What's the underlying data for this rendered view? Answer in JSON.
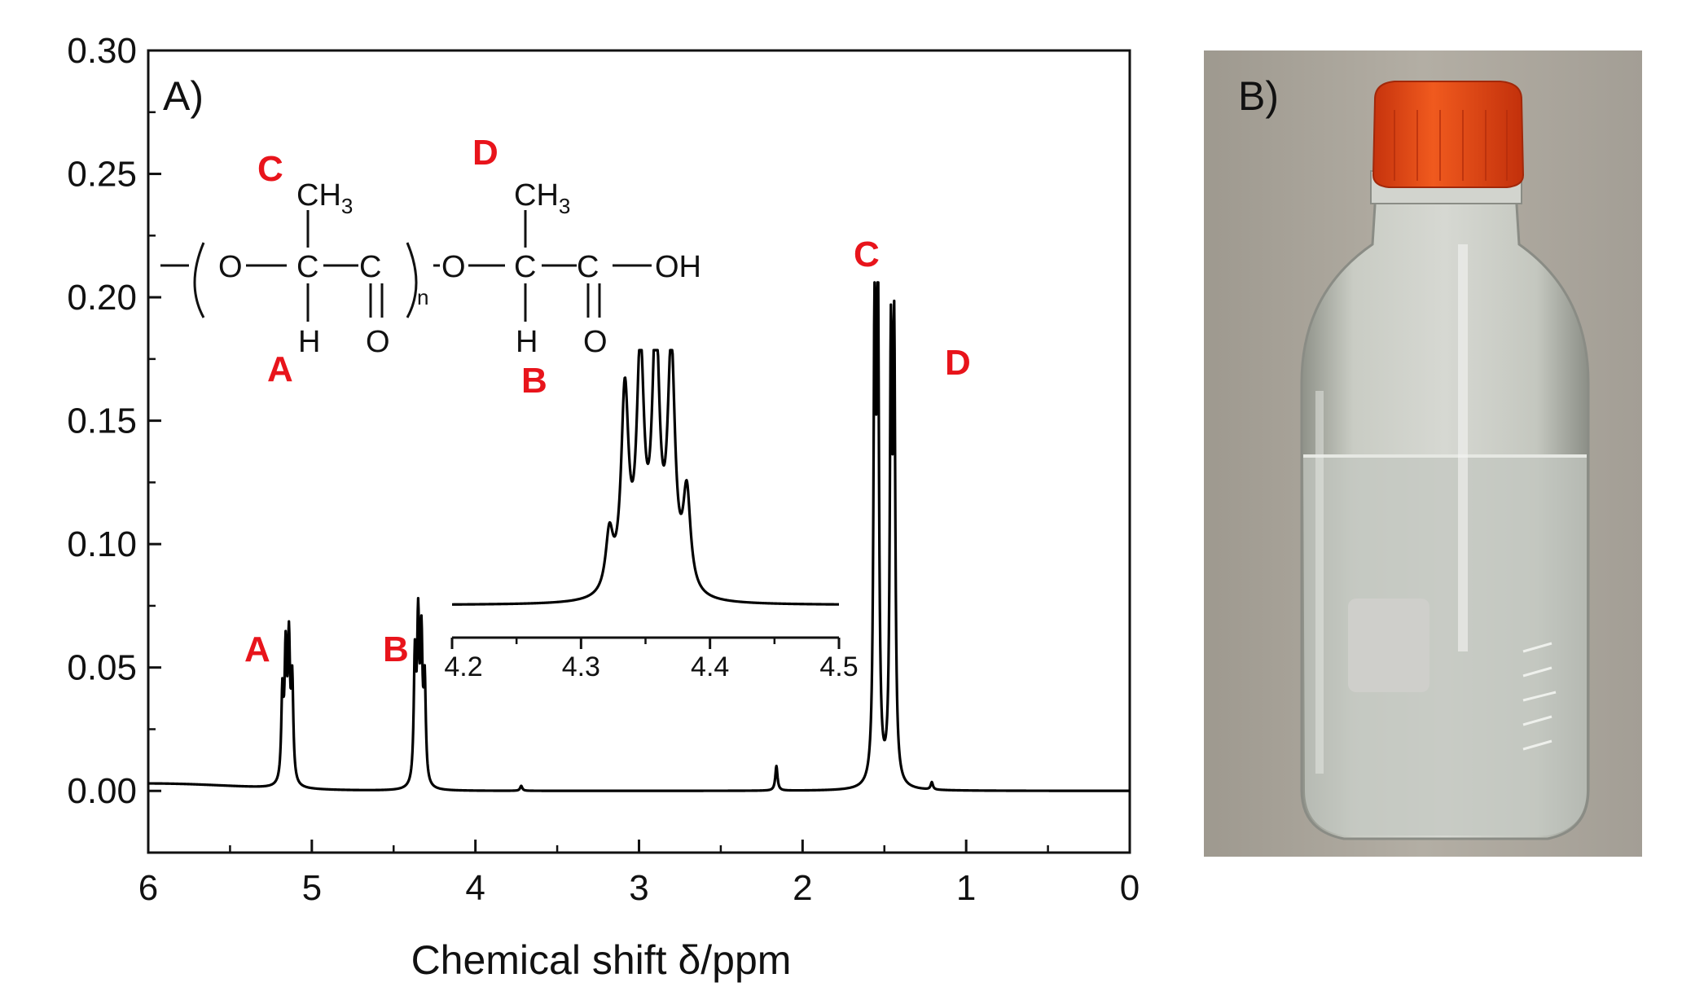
{
  "panel_a": {
    "label": "A)",
    "chart_data": {
      "type": "line",
      "title": "",
      "xlabel": "Chemical shift δ/ppm",
      "ylabel": "",
      "xlim": [
        6,
        0
      ],
      "ylim": [
        -0.025,
        0.3
      ],
      "x_reversed": true,
      "grid": false,
      "x_ticks": [
        6,
        5,
        4,
        3,
        2,
        1,
        0
      ],
      "y_ticks": [
        0.0,
        0.05,
        0.1,
        0.15,
        0.2,
        0.25,
        0.3
      ],
      "x_tick_labels": [
        "6",
        "5",
        "4",
        "3",
        "2",
        "1",
        "0"
      ],
      "y_tick_labels": [
        "0.00",
        "0.05",
        "0.10",
        "0.15",
        "0.20",
        "0.25",
        "0.30"
      ],
      "baseline": 0.0,
      "peaks": [
        {
          "label": "A",
          "x": [
            5.18,
            5.16,
            5.14,
            5.12
          ],
          "y": [
            0.035,
            0.05,
            0.054,
            0.04
          ]
        },
        {
          "label": "B",
          "x": [
            4.37,
            4.35,
            4.33,
            4.31
          ],
          "y": [
            0.05,
            0.062,
            0.055,
            0.04
          ]
        },
        {
          "label": "",
          "x": [
            3.72
          ],
          "y": [
            0.002
          ]
        },
        {
          "label": "",
          "x": [
            2.16
          ],
          "y": [
            0.01
          ]
        },
        {
          "label": "C",
          "x": [
            1.56,
            1.54
          ],
          "y": [
            0.18,
            0.205
          ]
        },
        {
          "label": "D",
          "x": [
            1.46,
            1.44
          ],
          "y": [
            0.17,
            0.173
          ]
        },
        {
          "label": "",
          "x": [
            1.21
          ],
          "y": [
            0.003
          ]
        }
      ],
      "annotations": [
        {
          "text": "A",
          "near_x": 5.15
        },
        {
          "text": "B",
          "near_x": 4.34
        },
        {
          "text": "C",
          "near_x": 1.55
        },
        {
          "text": "D",
          "near_x": 1.45
        }
      ]
    },
    "inset": {
      "chart_data": {
        "type": "line",
        "xlim": [
          4.2,
          4.5
        ],
        "x_ticks": [
          4.2,
          4.3,
          4.4,
          4.5
        ],
        "x_tick_labels": [
          "4.2",
          "4.3",
          "4.4",
          "4.5"
        ],
        "peaks_x": [
          4.322,
          4.334,
          4.346,
          4.358,
          4.37,
          4.382
        ],
        "peaks_rel": [
          0.25,
          0.85,
          1.0,
          1.1,
          1.02,
          0.42
        ]
      }
    },
    "structure": {
      "methyl_1": "CH",
      "methyl_1_sub": "3",
      "methyl_2": "CH",
      "methyl_2_sub": "3",
      "o1": "O",
      "c1": "C",
      "c2": "C",
      "h1": "H",
      "o_carbonyl_1": "O",
      "n_sub": "n",
      "o2": "O",
      "c3": "C",
      "c4": "C",
      "h2": "H",
      "o_carbonyl_2": "O",
      "oh": "OH",
      "label_c": "C",
      "label_a": "A",
      "label_d": "D",
      "label_b": "B"
    }
  },
  "panel_b": {
    "label": "B)",
    "photo": "glass-bottle-photo",
    "colors": {
      "cap": "#e84a14",
      "background": "#aaa59b",
      "liquid": "#c9cdc6"
    }
  }
}
